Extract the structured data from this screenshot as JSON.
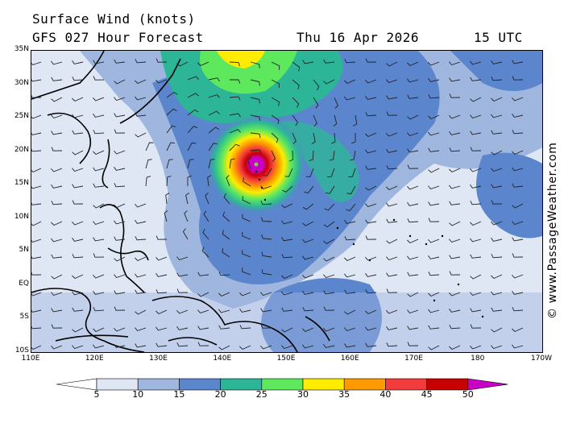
{
  "header": {
    "title": "Surface Wind (knots)",
    "subtitle": "GFS 027 Hour Forecast",
    "date": "Thu 16 Apr 2026",
    "time": "15 UTC"
  },
  "map": {
    "lat_labels": [
      "35N",
      "30N",
      "25N",
      "20N",
      "15N",
      "10N",
      "5N",
      "EQ",
      "5S",
      "10S"
    ],
    "lon_labels": [
      "110E",
      "120E",
      "130E",
      "140E",
      "150E",
      "160E",
      "170E",
      "180",
      "170W"
    ],
    "lat_range": [
      -10,
      35
    ],
    "lon_range": [
      110,
      190
    ],
    "storm_center": {
      "lon": 145.5,
      "lat": 19.5
    }
  },
  "credit": "© www.PassageWeather.com",
  "legend": {
    "labels": [
      "5",
      "10",
      "15",
      "20",
      "25",
      "30",
      "35",
      "40",
      "45",
      "50"
    ],
    "colors": [
      "#ffffff",
      "#dfe6f4",
      "#9fb6df",
      "#5b85cc",
      "#2db598",
      "#5ee85e",
      "#ffec00",
      "#ff9a00",
      "#f23c3c",
      "#c80000",
      "#c800c8"
    ]
  }
}
